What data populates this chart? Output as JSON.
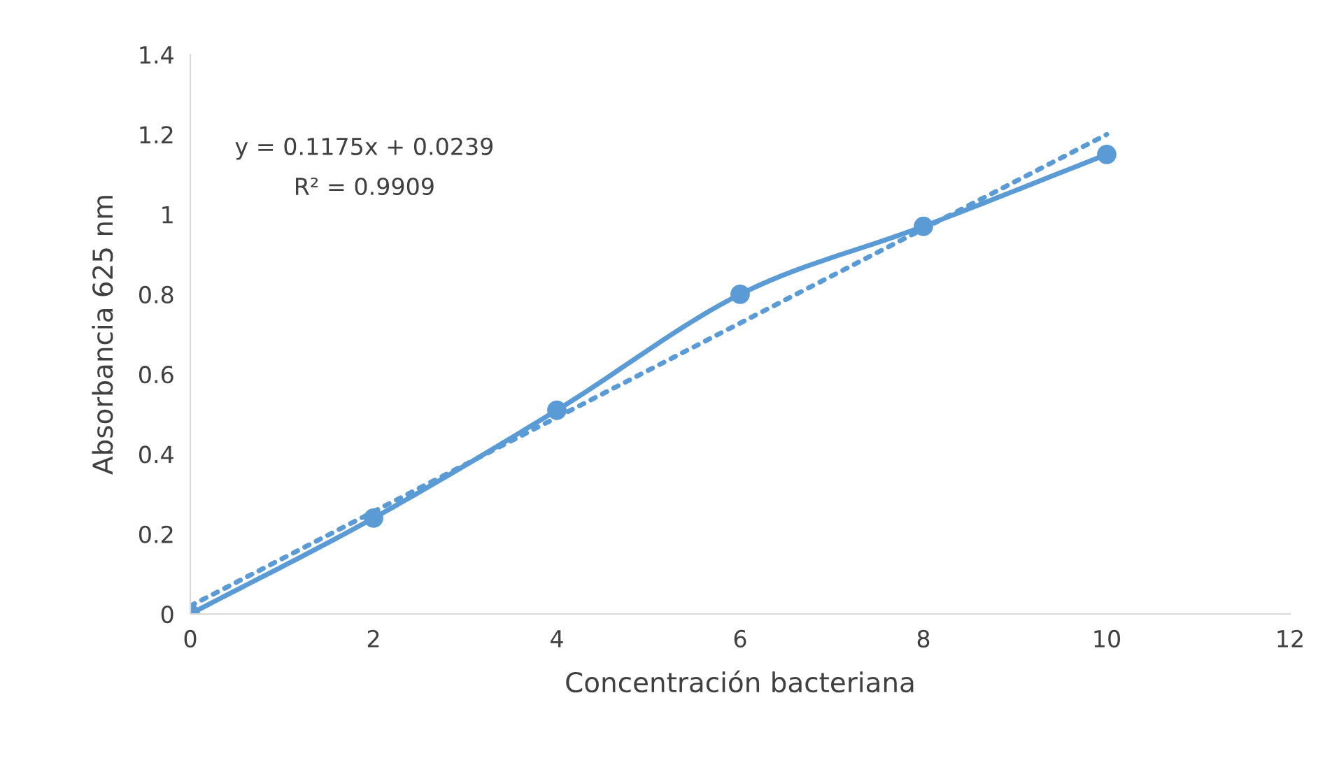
{
  "chart_data": {
    "type": "line",
    "xlabel": "Concentración bacteriana",
    "ylabel": "Absorbancia 625 nm",
    "xlim": [
      0,
      12
    ],
    "xticks": [
      0,
      2,
      4,
      6,
      8,
      10,
      12
    ],
    "ylim": [
      0,
      1.4
    ],
    "yticks": [
      0,
      0.2,
      0.4,
      0.6,
      0.8,
      1,
      1.2,
      1.4
    ],
    "grid": false,
    "legend": false,
    "series": [
      {
        "color": "#5b9bd5",
        "marker": "circle",
        "line_style": "solid",
        "x": [
          0,
          2,
          4,
          6,
          8,
          10
        ],
        "values": [
          0,
          0.24,
          0.51,
          0.8,
          0.97,
          1.15
        ]
      },
      {
        "color": "#5b9bd5",
        "marker": "none",
        "line_style": "dotted",
        "x": [
          0,
          10
        ],
        "values": [
          0.02,
          1.2
        ]
      }
    ],
    "annotations": [
      "y = 0.1175x + 0.0239",
      "R² = 0.9909"
    ]
  }
}
